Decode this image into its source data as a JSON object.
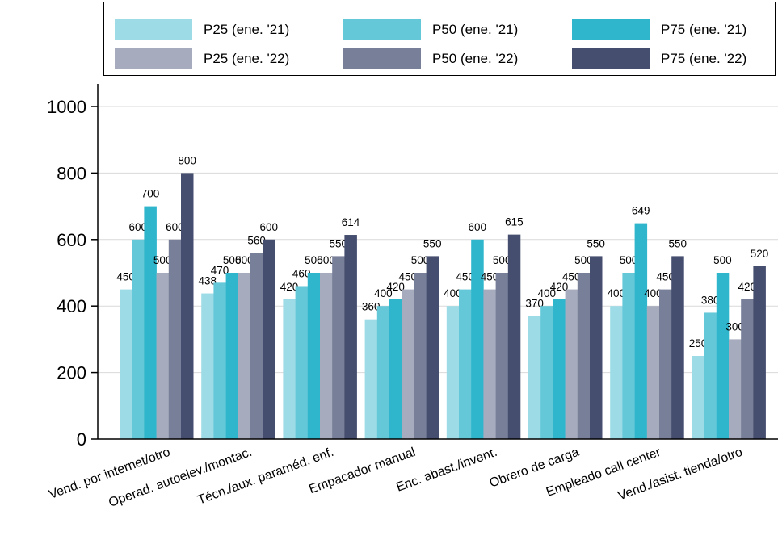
{
  "chart_data": {
    "type": "bar",
    "title": "",
    "xlabel": "",
    "ylabel": "",
    "ylim": [
      0,
      1000
    ],
    "yticks": [
      0,
      200,
      400,
      600,
      800,
      1000
    ],
    "grid": true,
    "legend_position": "top",
    "categories": [
      "Vend. por internet/otro",
      "Operad. autoelev./montac.",
      "Técn./aux. paraméd. enf.",
      "Empacador manual",
      "Enc. abast./invent.",
      "Obrero de carga",
      "Empleado call center",
      "Vend./asist. tienda/otro"
    ],
    "series": [
      {
        "name": "P25 (ene. '21)",
        "color": "#9ddce6",
        "values": [
          450,
          438,
          420,
          360,
          400,
          370,
          400,
          250
        ]
      },
      {
        "name": "P50 (ene. '21)",
        "color": "#64c8d8",
        "values": [
          600,
          470,
          460,
          400,
          450,
          400,
          500,
          380
        ]
      },
      {
        "name": "P75 (ene. '21)",
        "color": "#2fb6cc",
        "values": [
          700,
          500,
          500,
          420,
          600,
          420,
          649,
          500
        ]
      },
      {
        "name": "P25 (ene. '22)",
        "color": "#a6abbd",
        "values": [
          500,
          500,
          500,
          450,
          450,
          450,
          400,
          300
        ]
      },
      {
        "name": "P50 (ene. '22)",
        "color": "#777f99",
        "values": [
          600,
          560,
          550,
          500,
          500,
          500,
          450,
          420
        ]
      },
      {
        "name": "P75 (ene. '22)",
        "color": "#454e6e",
        "values": [
          800,
          600,
          614,
          550,
          615,
          550,
          550,
          520
        ]
      }
    ]
  }
}
